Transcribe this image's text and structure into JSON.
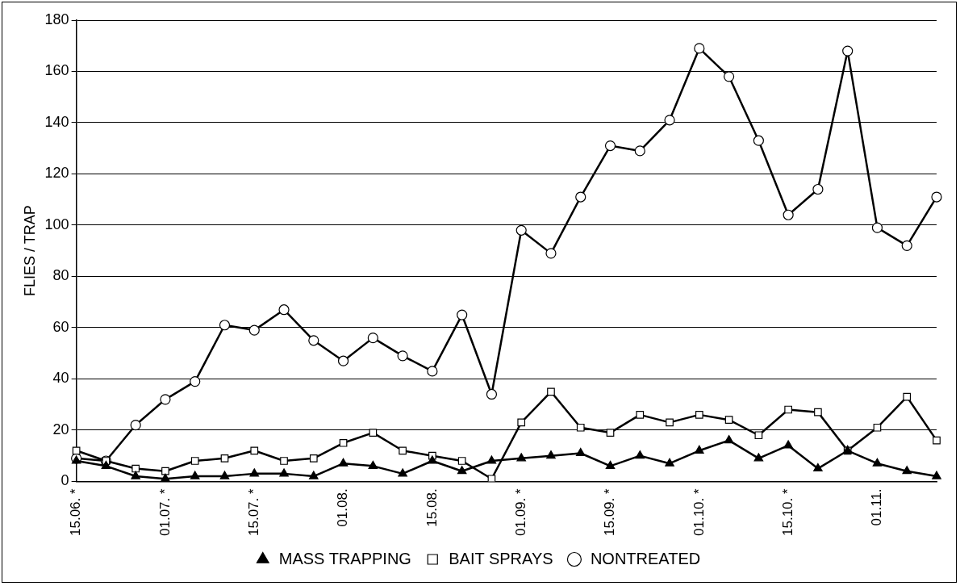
{
  "chart_data": {
    "type": "line",
    "ylabel": "FLIES / TRAP",
    "categories": [
      "15.06. *",
      null,
      null,
      "01.07. *",
      null,
      null,
      "15.07. *",
      null,
      null,
      "01.08.",
      null,
      null,
      "15.08.",
      null,
      null,
      "01.09. *",
      null,
      null,
      "15.09. *",
      null,
      null,
      "01.10. *",
      null,
      null,
      "15.10. *",
      null,
      null,
      "01.11.",
      null,
      null
    ],
    "series": [
      {
        "name": "MASS TRAPPING",
        "color": "#000000",
        "marker": "triangle",
        "values": [
          8,
          6,
          2,
          1,
          2,
          2,
          3,
          3,
          2,
          7,
          6,
          3,
          8,
          4,
          8,
          9,
          10,
          11,
          6,
          10,
          7,
          12,
          16,
          9,
          14,
          5,
          12,
          7,
          4,
          2
        ]
      },
      {
        "name": "BAIT SPRAYS",
        "color": "#000000",
        "marker": "square",
        "values": [
          12,
          8,
          5,
          4,
          8,
          9,
          12,
          8,
          9,
          15,
          19,
          12,
          10,
          8,
          1,
          23,
          35,
          21,
          19,
          26,
          23,
          26,
          24,
          18,
          28,
          27,
          12,
          21,
          33,
          16
        ]
      },
      {
        "name": "NONTREATED",
        "color": "#000000",
        "marker": "circle",
        "values": [
          9,
          8,
          22,
          32,
          39,
          61,
          59,
          67,
          55,
          47,
          56,
          49,
          43,
          65,
          34,
          98,
          89,
          111,
          131,
          129,
          141,
          169,
          158,
          133,
          104,
          114,
          168,
          99,
          92,
          111
        ]
      }
    ],
    "ylim": [
      0,
      180
    ],
    "yticks": [
      0,
      20,
      40,
      60,
      80,
      100,
      120,
      140,
      160,
      180
    ],
    "grid": "y",
    "legend": "bottom",
    "line_style": "solid"
  }
}
